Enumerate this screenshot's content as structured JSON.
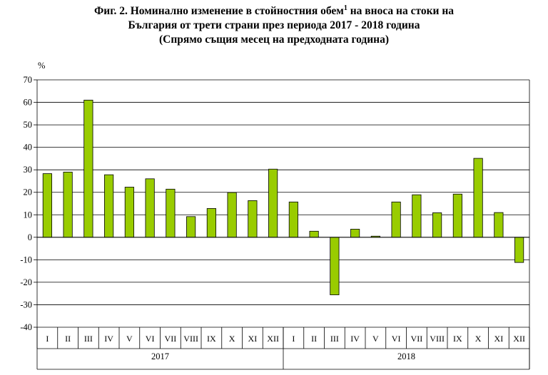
{
  "title": {
    "line1_a": "Фиг. 2. Номинално изменение в стойностния обем",
    "line1_sup": "1",
    "line1_b": " на вноса на стоки на",
    "line2": "България от трети страни през периода 2017 - 2018 година",
    "line3": "(Спрямо същия месец на предходната година)"
  },
  "chart_data": {
    "type": "bar",
    "ylabel": "%",
    "ylim": [
      -40,
      70
    ],
    "yticks": [
      -40,
      -30,
      -20,
      -10,
      0,
      10,
      20,
      30,
      40,
      50,
      60,
      70
    ],
    "grid": true,
    "bar_color": "#99cc00",
    "groups": [
      {
        "year": "2017",
        "categories": [
          "I",
          "II",
          "III",
          "IV",
          "V",
          "VI",
          "VII",
          "VIII",
          "IX",
          "X",
          "XI",
          "XII"
        ],
        "values": [
          28.3,
          29.0,
          61.0,
          27.8,
          22.3,
          26.0,
          21.4,
          9.2,
          12.8,
          19.9,
          16.3,
          30.3
        ]
      },
      {
        "year": "2018",
        "categories": [
          "I",
          "II",
          "III",
          "IV",
          "V",
          "VI",
          "VII",
          "VIII",
          "IX",
          "X",
          "XI",
          "XII"
        ],
        "values": [
          15.7,
          2.7,
          -25.6,
          3.6,
          0.5,
          15.7,
          18.9,
          10.9,
          19.2,
          35.1,
          11.0,
          -11.2
        ]
      }
    ]
  }
}
